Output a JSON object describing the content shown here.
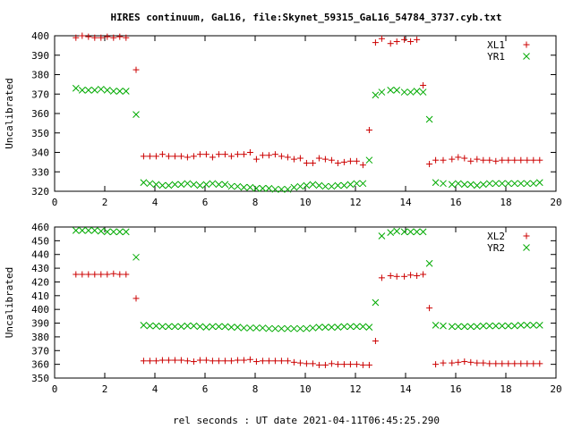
{
  "title": "HIRES continuum, GaL16, file:Skynet_59315_GaL16_54784_3737.cyb.txt",
  "xlabel": "rel seconds : UT date 2021-04-11T06:45:25.290",
  "colors": {
    "red_series": "#cc0000",
    "green_series": "#00aa00"
  },
  "chart_data": [
    {
      "type": "scatter",
      "ylabel": "Uncalibrated",
      "xlim": [
        0,
        20
      ],
      "ylim": [
        320,
        400
      ],
      "x_ticks": [
        0,
        2,
        4,
        6,
        8,
        10,
        12,
        14,
        16,
        18,
        20
      ],
      "y_ticks": [
        320,
        330,
        340,
        350,
        360,
        370,
        380,
        390,
        400
      ],
      "grid": false,
      "legend_position": "top-right",
      "x": [
        0.85,
        1.1,
        1.35,
        1.6,
        1.85,
        2.1,
        2.35,
        2.6,
        2.85,
        3.25,
        3.55,
        3.8,
        4.05,
        4.3,
        4.55,
        4.8,
        5.05,
        5.3,
        5.55,
        5.8,
        6.05,
        6.3,
        6.55,
        6.8,
        7.05,
        7.3,
        7.55,
        7.8,
        8.05,
        8.3,
        8.55,
        8.8,
        9.05,
        9.3,
        9.55,
        9.8,
        10.05,
        10.3,
        10.55,
        10.8,
        11.05,
        11.3,
        11.55,
        11.8,
        12.05,
        12.3,
        12.55,
        12.8,
        13.05,
        13.4,
        13.65,
        13.95,
        14.2,
        14.45,
        14.7,
        14.95,
        15.2,
        15.5,
        15.85,
        16.1,
        16.35,
        16.6,
        16.85,
        17.1,
        17.35,
        17.6,
        17.85,
        18.1,
        18.35,
        18.6,
        18.85,
        19.1,
        19.35
      ],
      "series": [
        {
          "name": "XL1",
          "marker": "+",
          "color": "#cc0000",
          "values": [
            399,
            400,
            399.5,
            399,
            399,
            399.5,
            399,
            399.5,
            399,
            382.5,
            338,
            338,
            338,
            339,
            338,
            338,
            338,
            337.5,
            338,
            339,
            339,
            337.5,
            339,
            339,
            338,
            339,
            339,
            340,
            336.5,
            338.5,
            338.5,
            339,
            338,
            337.5,
            336.5,
            337,
            334.5,
            334.5,
            337,
            336.5,
            336,
            334.5,
            335,
            335.5,
            335.5,
            333.5,
            351.5,
            396.5,
            398.5,
            396,
            397,
            398,
            397,
            398,
            374.5,
            334,
            336,
            336,
            336.5,
            337.5,
            337,
            335.5,
            336.5,
            336,
            336,
            335.5,
            336,
            336,
            336,
            336,
            336,
            336,
            336
          ]
        },
        {
          "name": "YR1",
          "marker": "x",
          "color": "#00aa00",
          "values": [
            373,
            372,
            372,
            372,
            372.5,
            372,
            371.5,
            371.5,
            371.5,
            359.5,
            324.5,
            324,
            323.5,
            323,
            323,
            323.5,
            323.5,
            324,
            323.5,
            323,
            323.5,
            324,
            323.5,
            323.5,
            322.5,
            322.5,
            322,
            322,
            321.5,
            321.5,
            321.5,
            321,
            321,
            321,
            322,
            322.5,
            323,
            323.5,
            323,
            322.5,
            322.5,
            323,
            323,
            323.5,
            324,
            324,
            336,
            369.5,
            371,
            372,
            372,
            371,
            371,
            371.5,
            371,
            357,
            324.5,
            324,
            323.5,
            324,
            323.5,
            323.5,
            323,
            323.5,
            324,
            324,
            324,
            324,
            324,
            324,
            324,
            324,
            324.5
          ]
        }
      ]
    },
    {
      "type": "scatter",
      "ylabel": "Uncalibrated",
      "xlim": [
        0,
        20
      ],
      "ylim": [
        350,
        460
      ],
      "x_ticks": [
        0,
        2,
        4,
        6,
        8,
        10,
        12,
        14,
        16,
        18,
        20
      ],
      "y_ticks": [
        350,
        360,
        370,
        380,
        390,
        400,
        410,
        420,
        430,
        440,
        450,
        460
      ],
      "grid": false,
      "legend_position": "top-right",
      "x": [
        0.85,
        1.1,
        1.35,
        1.6,
        1.85,
        2.1,
        2.35,
        2.6,
        2.85,
        3.25,
        3.55,
        3.8,
        4.05,
        4.3,
        4.55,
        4.8,
        5.05,
        5.3,
        5.55,
        5.8,
        6.05,
        6.3,
        6.55,
        6.8,
        7.05,
        7.3,
        7.55,
        7.8,
        8.05,
        8.3,
        8.55,
        8.8,
        9.05,
        9.3,
        9.55,
        9.8,
        10.05,
        10.3,
        10.55,
        10.8,
        11.05,
        11.3,
        11.55,
        11.8,
        12.05,
        12.3,
        12.55,
        12.8,
        13.05,
        13.4,
        13.65,
        13.95,
        14.2,
        14.45,
        14.7,
        14.95,
        15.2,
        15.5,
        15.85,
        16.1,
        16.35,
        16.6,
        16.85,
        17.1,
        17.35,
        17.6,
        17.85,
        18.1,
        18.35,
        18.6,
        18.85,
        19.1,
        19.35
      ],
      "series": [
        {
          "name": "XL2",
          "marker": "+",
          "color": "#cc0000",
          "values": [
            425.5,
            425.5,
            425.5,
            425.5,
            425.5,
            425.5,
            426,
            425.5,
            425.5,
            408,
            362.5,
            362.5,
            362.5,
            363,
            363,
            363,
            363,
            362.5,
            362,
            363,
            363,
            362.5,
            362.5,
            362.5,
            362.5,
            363,
            363,
            363.5,
            362,
            362.5,
            362.5,
            362.5,
            362.5,
            362.5,
            361.5,
            361,
            360.5,
            360.5,
            359.5,
            359.5,
            360.5,
            360,
            360,
            360,
            360,
            359.5,
            359.5,
            377,
            423,
            424.5,
            424,
            424,
            425,
            424.5,
            425.5,
            401,
            360,
            361,
            361,
            361.5,
            362,
            361.5,
            361,
            361,
            360.5,
            360.5,
            360.5,
            360.5,
            360.5,
            360.5,
            360.5,
            360.5,
            360.5
          ]
        },
        {
          "name": "YR2",
          "marker": "x",
          "color": "#00aa00",
          "values": [
            457.5,
            457.5,
            457.5,
            457.5,
            457,
            456.5,
            456.5,
            456.5,
            456.5,
            438,
            388.5,
            388,
            388,
            387.5,
            387.5,
            387.5,
            387.5,
            388,
            388,
            387.5,
            387,
            387.5,
            387.5,
            387.5,
            387,
            387,
            386.5,
            386.5,
            386.5,
            386.5,
            386,
            386,
            386,
            386,
            386,
            386,
            386,
            386.5,
            387,
            387,
            387,
            387,
            387.5,
            387.5,
            387.5,
            387.5,
            387,
            405,
            453.5,
            456,
            457,
            456.5,
            456.5,
            456.5,
            456.5,
            433.5,
            388.5,
            388,
            387.5,
            387.5,
            387.5,
            387.5,
            387.5,
            388,
            388,
            388,
            388,
            388,
            388,
            388.5,
            388.5,
            388.5,
            388.5
          ]
        }
      ]
    }
  ]
}
